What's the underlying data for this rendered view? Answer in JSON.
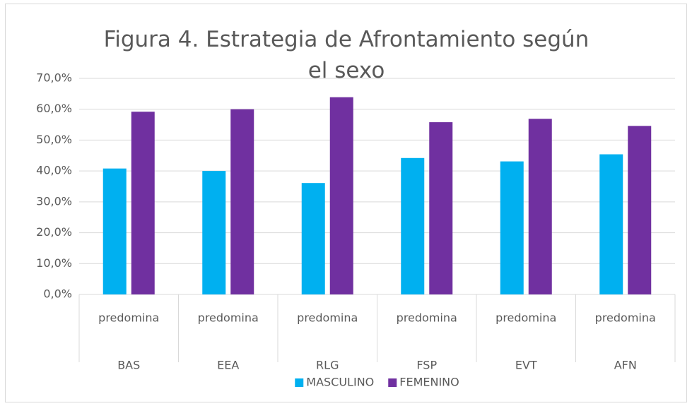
{
  "chart_data": {
    "type": "bar",
    "title": "Figura 4. Estrategia de Afrontamiento según el sexo",
    "categories": [
      "BAS",
      "EEA",
      "RLG",
      "FSP",
      "EVT",
      "AFN"
    ],
    "subcategories": [
      "predomina",
      "predomina",
      "predomina",
      "predomina",
      "predomina",
      "predomina"
    ],
    "series": [
      {
        "name": "MASCULINO",
        "color": "#00b0f0",
        "values": [
          40.8,
          40.0,
          36.1,
          44.2,
          43.1,
          45.4
        ]
      },
      {
        "name": "FEMENINO",
        "color": "#7030a0",
        "values": [
          59.2,
          60.0,
          63.9,
          55.8,
          56.9,
          54.6
        ]
      }
    ],
    "ylim": [
      0,
      70
    ],
    "yticks": [
      {
        "value": 0,
        "label": "0,0%"
      },
      {
        "value": 10,
        "label": "10,0%"
      },
      {
        "value": 20,
        "label": "20,0%"
      },
      {
        "value": 30,
        "label": "30,0%"
      },
      {
        "value": 40,
        "label": "40,0%"
      },
      {
        "value": 50,
        "label": "50,0%"
      },
      {
        "value": 60,
        "label": "60,0%"
      },
      {
        "value": 70,
        "label": "70,0%"
      }
    ],
    "grid": true,
    "legend": "bottom"
  }
}
